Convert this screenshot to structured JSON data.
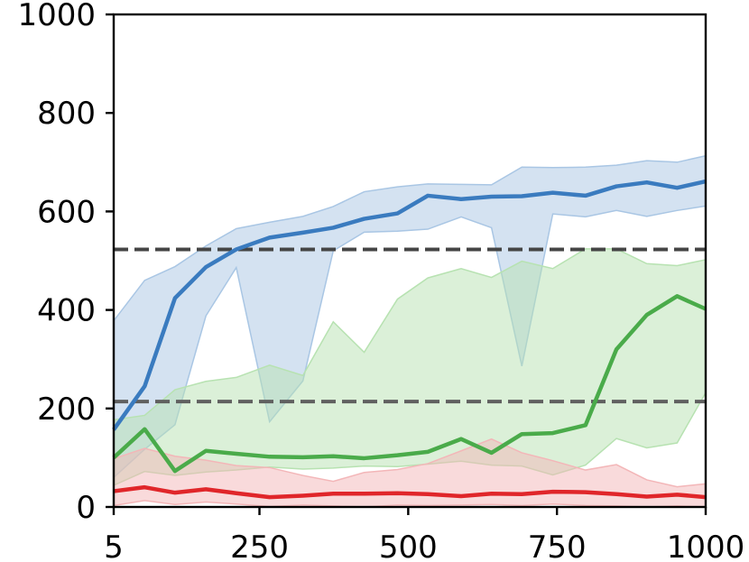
{
  "chart_data": {
    "type": "line",
    "title": "",
    "xlabel": "",
    "ylabel": "",
    "xlim": [
      5,
      1000
    ],
    "ylim": [
      0,
      1000
    ],
    "grid": false,
    "x_ticks": [
      5,
      250,
      500,
      750,
      1000
    ],
    "x_tick_labels": [
      "5",
      "250",
      "500",
      "750",
      "1000"
    ],
    "y_ticks": [
      0,
      200,
      400,
      600,
      800,
      1000
    ],
    "y_tick_labels": [
      "0",
      "200",
      "400",
      "600",
      "800",
      "1000"
    ],
    "x": [
      5,
      57,
      108,
      160,
      211,
      267,
      323,
      374,
      426,
      482,
      533,
      589,
      640,
      691,
      743,
      798,
      850,
      901,
      952,
      1000
    ],
    "series": [
      {
        "color": "#3a7bbf",
        "fill": "#a9c6e4",
        "values": [
          157,
          245,
          424,
          487,
          523,
          547,
          557,
          567,
          585,
          596,
          632,
          625,
          630,
          631,
          638,
          632,
          651,
          659,
          648,
          661
        ],
        "upper": [
          378,
          460,
          488,
          530,
          565,
          578,
          590,
          610,
          640,
          650,
          656,
          655,
          654,
          690,
          689,
          690,
          694,
          703,
          700,
          713
        ],
        "lower": [
          60,
          117,
          167,
          388,
          486,
          173,
          256,
          520,
          558,
          560,
          564,
          589,
          567,
          286,
          595,
          589,
          602,
          590,
          602,
          611
        ]
      },
      {
        "color": "#4aab4a",
        "fill": "#b7e2b1",
        "values": [
          100,
          158,
          73,
          114,
          108,
          102,
          101,
          103,
          99,
          105,
          112,
          138,
          110,
          148,
          150,
          166,
          320,
          390,
          428,
          402
        ],
        "upper": [
          177,
          186,
          238,
          255,
          263,
          288,
          267,
          376,
          314,
          422,
          465,
          484,
          466,
          499,
          484,
          524,
          524,
          494,
          490,
          502
        ],
        "lower": [
          44,
          72,
          64,
          71,
          75,
          81,
          77,
          79,
          83,
          82,
          87,
          93,
          85,
          83,
          65,
          85,
          139,
          120,
          130,
          232
        ]
      },
      {
        "color": "#e0262a",
        "fill": "#f3b6b8",
        "values": [
          32,
          40,
          29,
          36,
          28,
          20,
          23,
          27,
          27,
          28,
          26,
          22,
          27,
          26,
          31,
          30,
          26,
          21,
          25,
          20
        ],
        "upper": [
          98,
          119,
          103,
          95,
          84,
          80,
          64,
          52,
          70,
          76,
          88,
          114,
          138,
          110,
          94,
          75,
          86,
          55,
          41,
          47
        ],
        "lower": [
          3,
          13,
          5,
          10,
          6,
          1,
          4,
          2,
          0,
          4,
          3,
          4,
          5,
          3,
          6,
          3,
          2,
          0,
          2,
          0
        ]
      }
    ],
    "reference_lines": [
      {
        "y": 523,
        "style": "dashed",
        "color": "#454545"
      },
      {
        "y": 214,
        "style": "dashed",
        "color": "#606060"
      }
    ]
  }
}
